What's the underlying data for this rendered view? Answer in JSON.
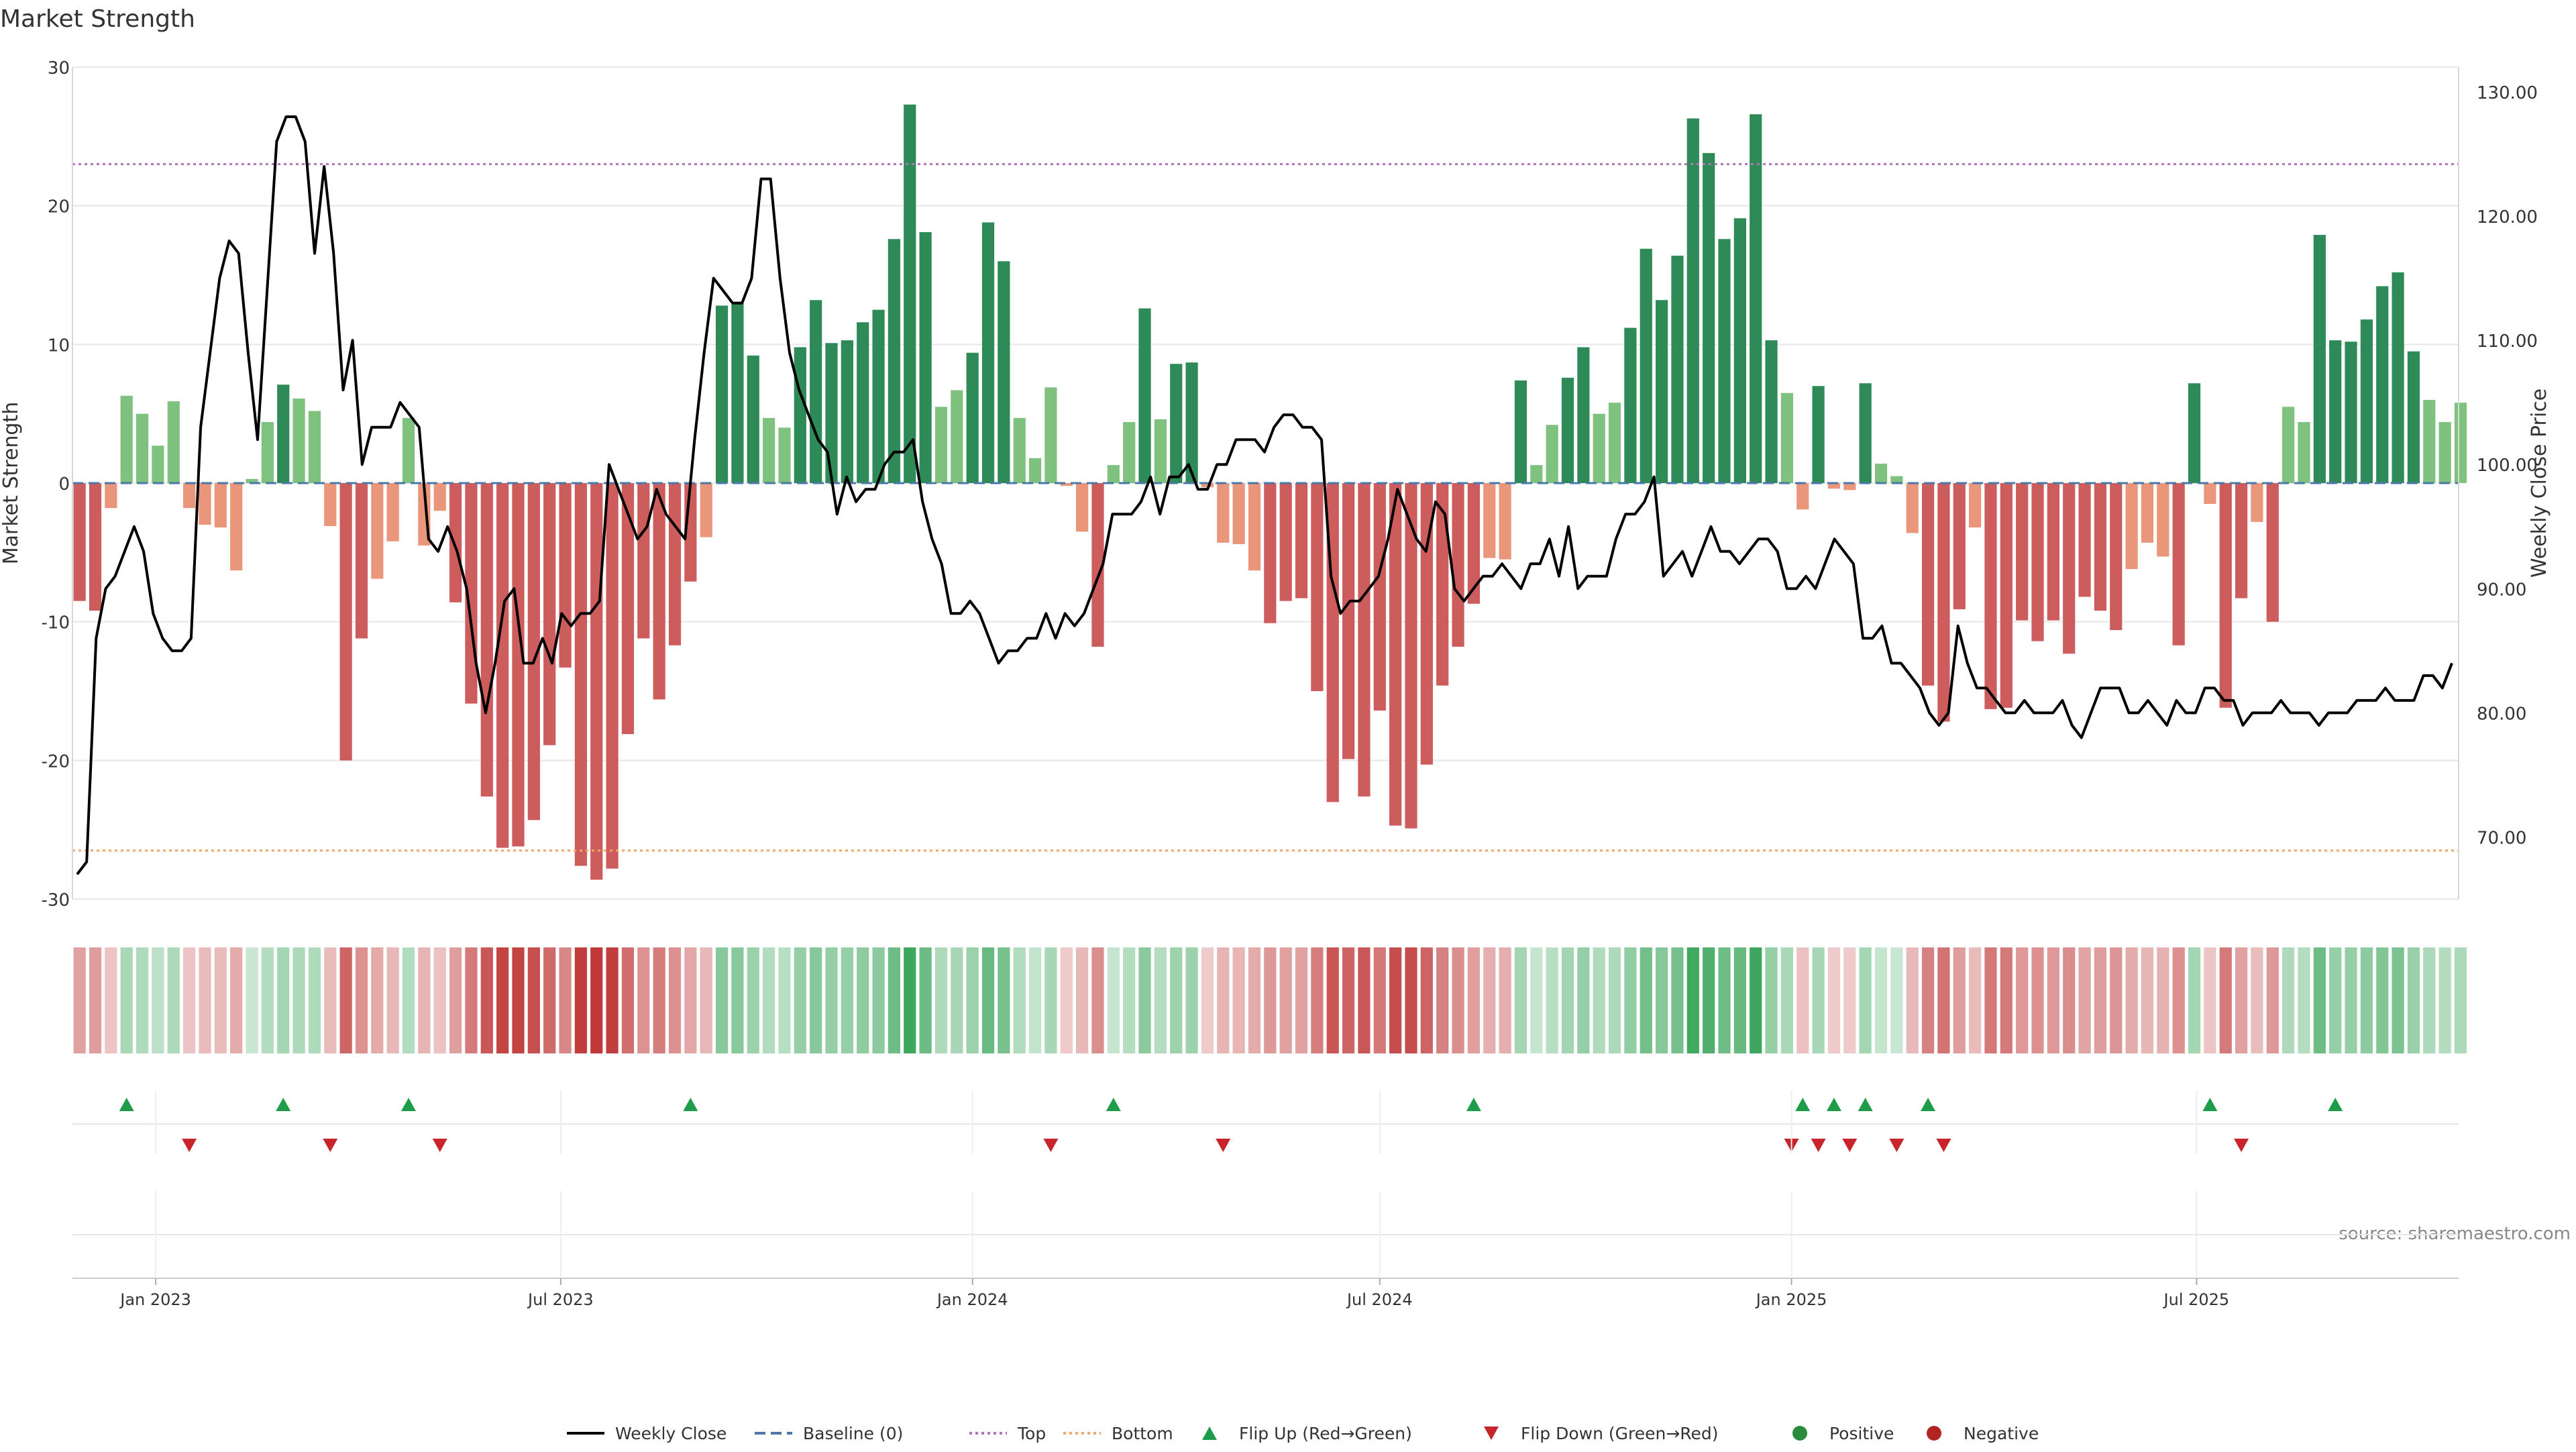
{
  "chart_data": {
    "type": "bar",
    "title": "Market Strength",
    "ylabel": "Market Strength",
    "y2label": "Weekly Close Price",
    "ylim": [
      -30,
      30
    ],
    "y2lim": [
      65,
      132
    ],
    "yticks": [
      30,
      20,
      10,
      0,
      -10,
      -20,
      -30
    ],
    "y2ticks": [
      "130.00",
      "120.00",
      "110.00",
      "100.00",
      "90.00",
      "80.00",
      "70.00"
    ],
    "x_date_range": [
      "2022-11-26",
      "2025-10-27"
    ],
    "x_ticks": [
      {
        "date": "2023-01-01",
        "label": "Jan 2023"
      },
      {
        "date": "2023-07-01",
        "label": "Jul 2023"
      },
      {
        "date": "2024-01-01",
        "label": "Jan 2024"
      },
      {
        "date": "2024-07-01",
        "label": "Jul 2024"
      },
      {
        "date": "2025-01-01",
        "label": "Jan 2025"
      },
      {
        "date": "2025-07-01",
        "label": "Jul 2025"
      }
    ],
    "first_week": "2022-11-28",
    "week_interval_days": 7,
    "top_line": 23,
    "bottom_line": -26.5,
    "baseline": 0,
    "strength": [
      -8.5,
      -9.2,
      -1.8,
      6.3,
      5.0,
      2.7,
      5.9,
      -1.8,
      -3.0,
      -3.2,
      -6.3,
      0.3,
      4.4,
      7.1,
      6.1,
      5.2,
      -3.1,
      -20,
      -11.2,
      -6.9,
      -4.2,
      4.7,
      -4.5,
      -2.0,
      -8.6,
      -15.9,
      -22.6,
      -26.3,
      -26.2,
      -24.3,
      -18.9,
      -13.3,
      -27.6,
      -28.6,
      -27.8,
      -18.1,
      -11.2,
      -15.6,
      -11.7,
      -7.1,
      -3.9,
      12.8,
      13.0,
      9.2,
      4.7,
      4.0,
      9.8,
      13.2,
      10.1,
      10.3,
      11.6,
      12.5,
      17.6,
      27.3,
      18.1,
      5.5,
      6.7,
      9.4,
      18.8,
      16.0,
      4.7,
      1.8,
      6.9,
      -0.2,
      -3.5,
      -11.8,
      1.3,
      4.4,
      12.6,
      4.6,
      8.6,
      8.7,
      -0.3,
      -4.3,
      -4.4,
      -6.3,
      -10.1,
      -8.5,
      -8.3,
      -15.0,
      -23.0,
      -19.9,
      -22.6,
      -16.4,
      -24.7,
      -24.9,
      -20.3,
      -14.6,
      -11.8,
      -8.7,
      -5.4,
      -5.5,
      7.4,
      1.3,
      4.2,
      7.6,
      9.8,
      5.0,
      5.8,
      11.2,
      16.9,
      13.2,
      16.4,
      26.3,
      23.8,
      17.6,
      19.1,
      26.6,
      10.3,
      6.5,
      -1.9,
      7.0,
      -0.4,
      -0.5,
      7.2,
      1.4,
      0.5,
      -3.6,
      -14.6,
      -17.2,
      -9.1,
      -3.2,
      -16.3,
      -16.2,
      -9.9,
      -11.4,
      -9.9,
      -12.3,
      -8.2,
      -9.2,
      -10.6,
      -6.2,
      -4.3,
      -5.3,
      -11.7,
      7.2,
      -1.5,
      -16.2,
      -8.3,
      -2.8,
      -10.0,
      5.5,
      4.4,
      17.9,
      10.3,
      10.2,
      11.8,
      14.2,
      15.2,
      9.5,
      6.0,
      4.4,
      5.8
    ],
    "price": [
      67,
      68,
      86,
      90,
      91,
      93,
      95,
      93,
      88,
      86,
      85,
      85,
      86,
      103,
      109,
      115,
      118,
      117,
      109,
      102,
      114,
      126,
      128,
      128,
      126,
      117,
      124,
      117,
      106,
      110,
      100,
      103,
      103,
      103,
      105,
      104,
      103,
      94,
      93,
      95,
      93,
      90,
      84,
      80,
      84,
      89,
      90,
      84,
      84,
      86,
      84,
      88,
      87,
      88,
      88,
      89,
      100,
      98,
      96,
      94,
      95,
      98,
      96,
      95,
      94,
      102,
      109,
      115,
      114,
      113,
      113,
      115,
      123,
      123,
      115,
      109,
      106,
      104,
      102,
      101,
      96,
      99,
      97,
      98,
      98,
      100,
      101,
      101,
      102,
      97,
      94,
      92,
      88,
      88,
      89,
      88,
      86,
      84,
      85,
      85,
      86,
      86,
      88,
      86,
      88,
      87,
      88,
      90,
      92,
      96,
      96,
      96,
      97,
      99,
      96,
      99,
      99,
      100,
      98,
      98,
      100,
      100,
      102,
      102,
      102,
      101,
      103,
      104,
      104,
      103,
      103,
      102,
      91,
      88,
      89,
      89,
      90,
      91,
      94,
      98,
      96,
      94,
      93,
      97,
      96,
      90,
      89,
      90,
      91,
      91,
      92,
      91,
      90,
      92,
      92,
      94,
      91,
      95,
      90,
      91,
      91,
      91,
      94,
      96,
      96,
      97,
      99,
      91,
      92,
      93,
      91,
      93,
      95,
      93,
      93,
      92,
      93,
      94,
      94,
      93,
      90,
      90,
      91,
      90,
      92,
      94,
      93,
      92,
      86,
      86,
      87,
      84,
      84,
      83,
      82,
      80,
      79,
      80,
      87,
      84,
      82,
      82,
      81,
      80,
      80,
      81,
      80,
      80,
      80,
      81,
      79,
      78,
      80,
      82,
      82,
      82,
      80,
      80,
      81,
      80,
      79,
      81,
      80,
      80,
      82,
      82,
      81,
      81,
      79,
      80,
      80,
      80,
      81,
      80,
      80,
      80,
      79,
      80,
      80,
      80,
      81,
      81,
      81,
      82,
      81,
      81,
      81,
      83,
      83,
      82,
      84
    ],
    "flip_up_dates": [
      "2022-12-19",
      "2023-02-27",
      "2023-04-24",
      "2023-08-28",
      "2024-03-04",
      "2024-08-12",
      "2025-01-06",
      "2025-01-20",
      "2025-02-03",
      "2025-03-03",
      "2025-07-07",
      "2025-09-01"
    ],
    "flip_down_dates": [
      "2023-01-16",
      "2023-03-20",
      "2023-05-08",
      "2024-02-05",
      "2024-04-22",
      "2025-01-01",
      "2025-01-13",
      "2025-01-27",
      "2025-02-17",
      "2025-03-10",
      "2025-07-21"
    ],
    "source": "source: sharemaestro.com",
    "legend": [
      {
        "label": "Weekly Close",
        "kind": "line-solid",
        "color": "#000000"
      },
      {
        "label": "Baseline (0)",
        "kind": "line-dashed",
        "color": "#4a78a8"
      },
      {
        "label": "Top",
        "kind": "line-dotted",
        "color": "#b074b8"
      },
      {
        "label": "Bottom",
        "kind": "line-dotted",
        "color": "#f0a868"
      },
      {
        "label": "Flip Up (Red→Green)",
        "kind": "triangle-up",
        "color": "#1e9c4a"
      },
      {
        "label": "Flip Down (Green→Red)",
        "kind": "triangle-down",
        "color": "#c8242c"
      },
      {
        "label": "Positive",
        "kind": "circle",
        "color": "#2a8a3e"
      },
      {
        "label": "Negative",
        "kind": "circle",
        "color": "#b22424"
      }
    ],
    "legend_position": "bottom-center",
    "colors": {
      "pos_strong": "#2e8b57",
      "pos_light": "#7fc17f",
      "neg_strong": "#cd5c5c",
      "neg_light": "#e9967a",
      "price_line": "#000000",
      "grid": "#e8e8e8"
    }
  }
}
